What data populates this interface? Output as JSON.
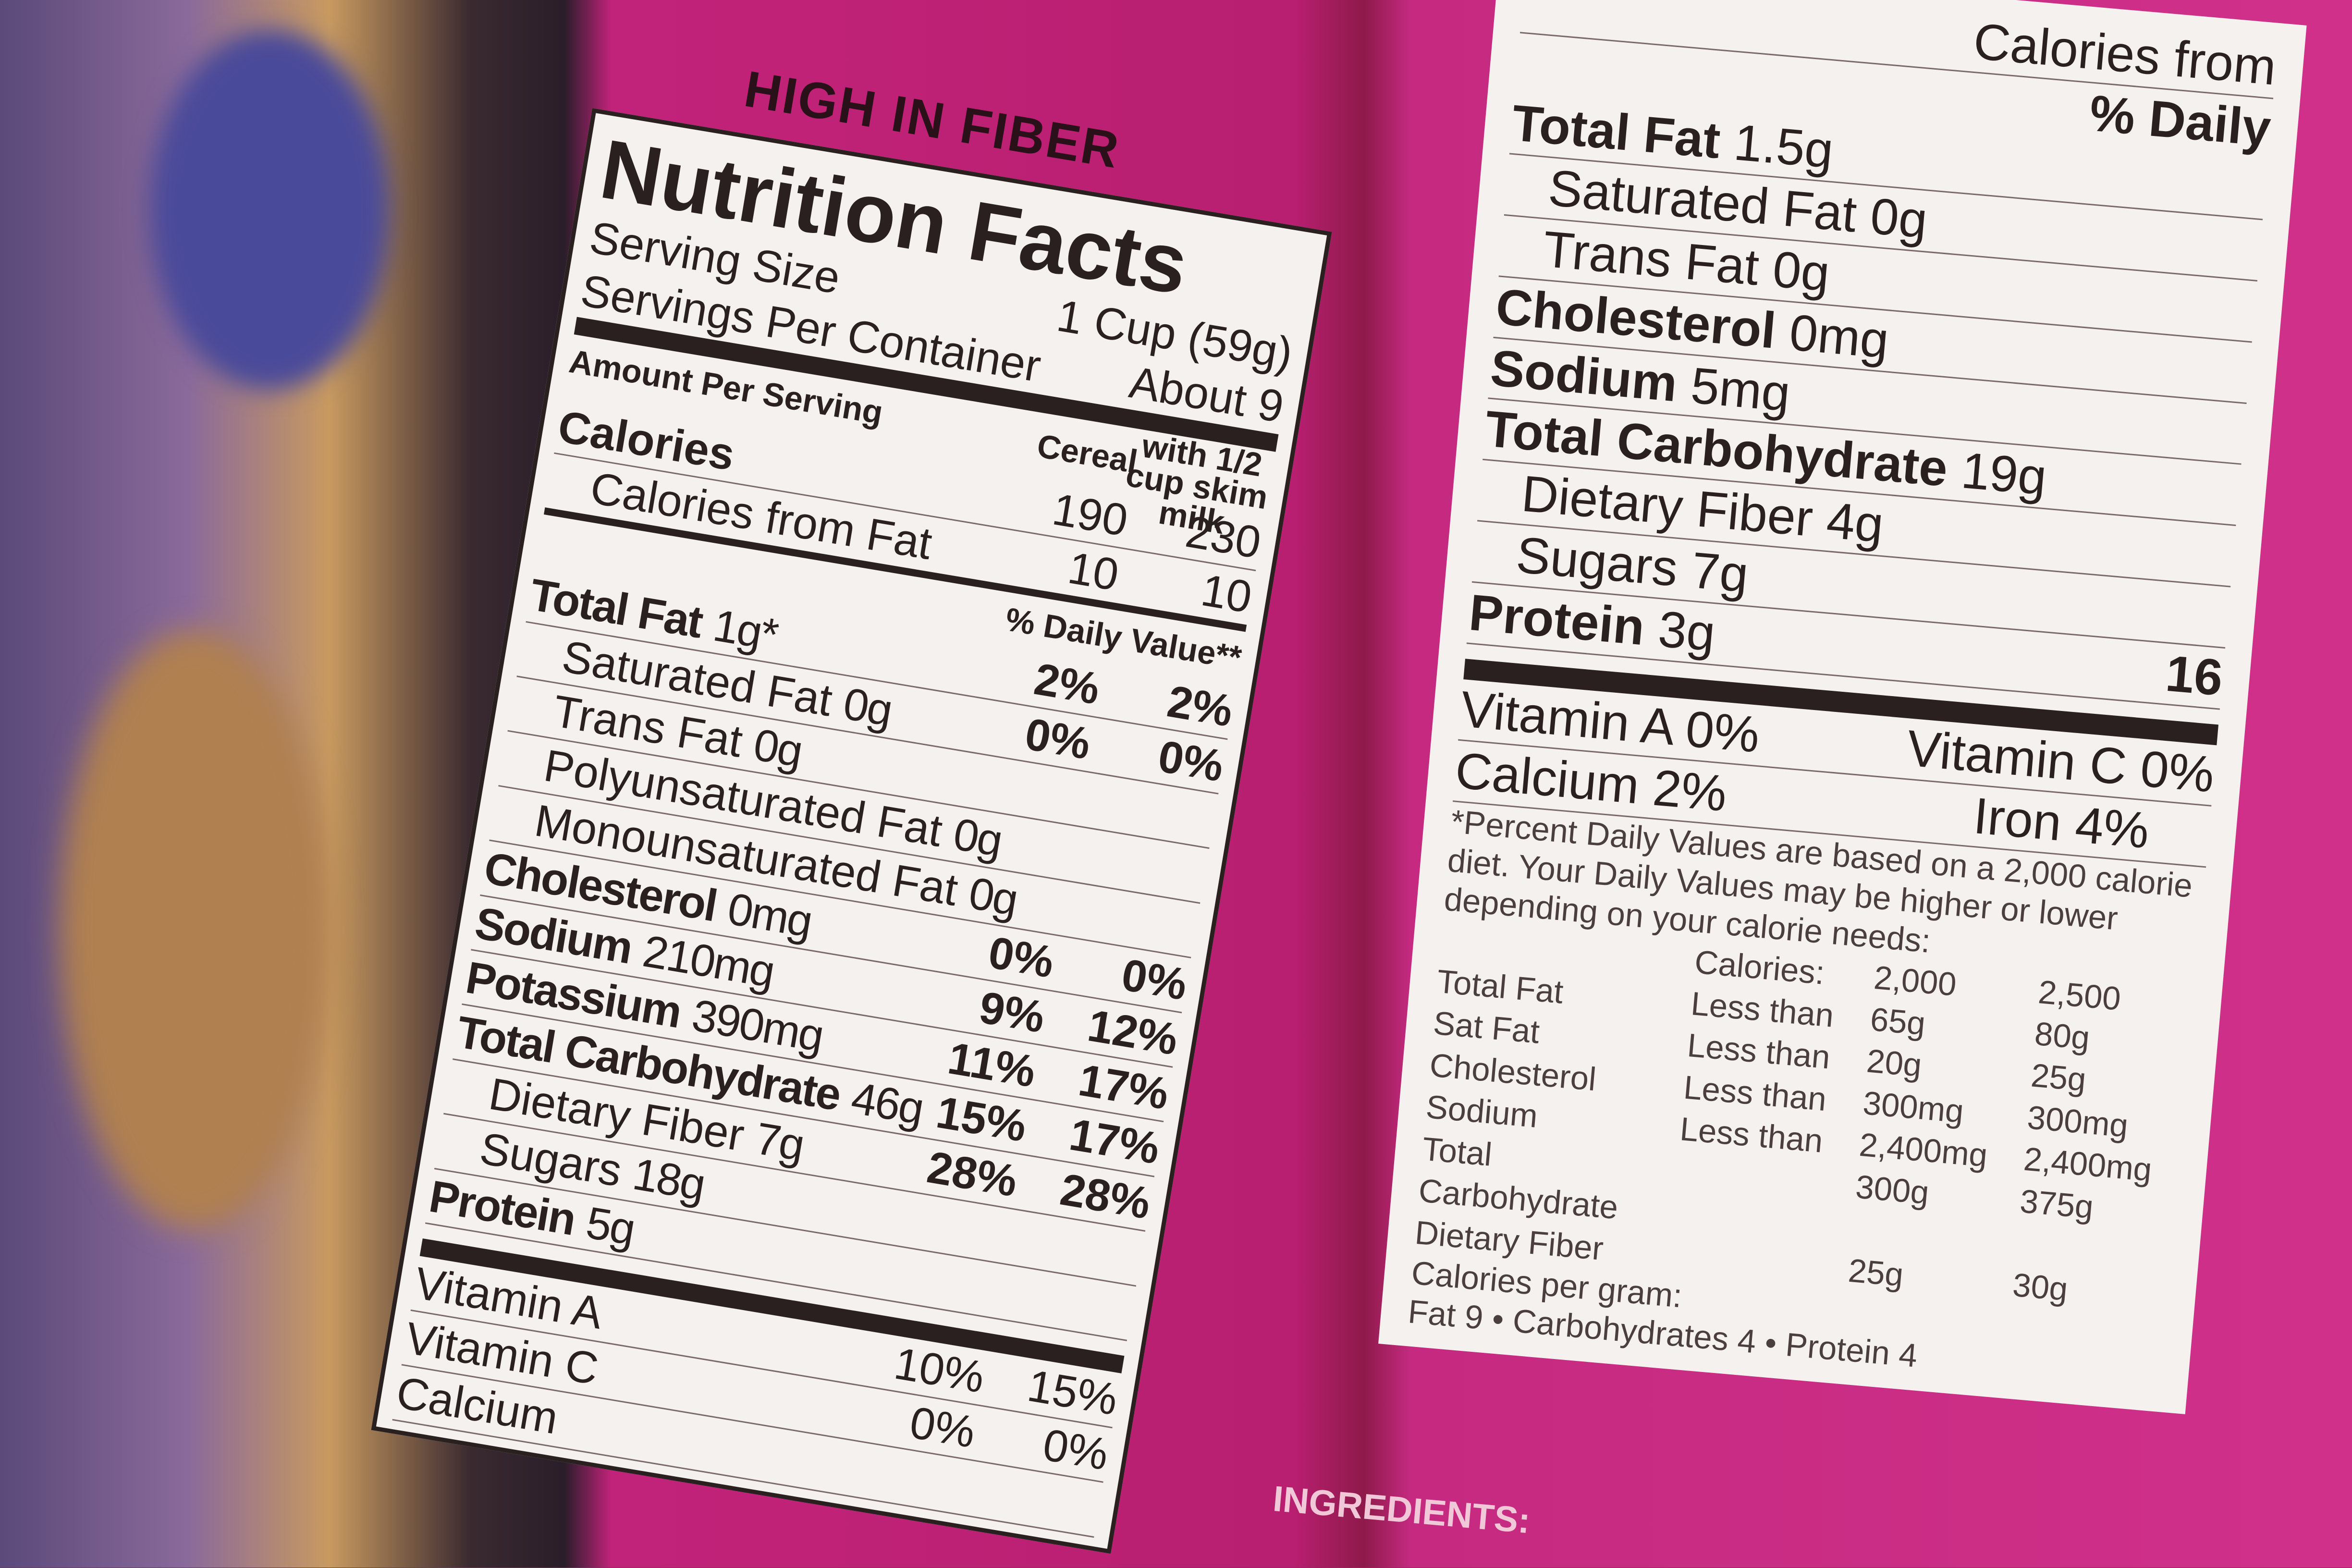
{
  "left_label": {
    "banner": "HIGH IN FIBER",
    "title": "Nutrition Facts",
    "serving_size_label": "Serving Size",
    "serving_size": "1 Cup (59g)",
    "servings_label": "Servings Per Container",
    "servings": "About 9",
    "amount_per_serving": "Amount Per Serving",
    "col_cereal": "Cereal",
    "col_milk": "with 1/2 cup skim milk",
    "calories": {
      "label": "Calories",
      "cereal": "190",
      "milk": "230"
    },
    "calories_fat": {
      "label": "Calories from Fat",
      "cereal": "10",
      "milk": "10"
    },
    "dv_header": "% Daily Value**",
    "rows": [
      {
        "label": "Total Fat",
        "amount": "1g*",
        "cereal": "2%",
        "milk": "2%"
      },
      {
        "label": "Saturated Fat",
        "amount": "0g",
        "cereal": "0%",
        "milk": "0%"
      },
      {
        "label": "Trans Fat",
        "amount": "0g",
        "cereal": "",
        "milk": ""
      },
      {
        "label": "Polyunsaturated Fat",
        "amount": "0g",
        "cereal": "",
        "milk": ""
      },
      {
        "label": "Monounsaturated Fat",
        "amount": "0g",
        "cereal": "",
        "milk": ""
      },
      {
        "label": "Cholesterol",
        "amount": "0mg",
        "cereal": "0%",
        "milk": "0%"
      },
      {
        "label": "Sodium",
        "amount": "210mg",
        "cereal": "9%",
        "milk": "12%"
      },
      {
        "label": "Potassium",
        "amount": "390mg",
        "cereal": "11%",
        "milk": "17%"
      },
      {
        "label": "Total Carbohydrate",
        "amount": "46g",
        "cereal": "15%",
        "milk": "17%"
      },
      {
        "label": "Dietary Fiber",
        "amount": "7g",
        "cereal": "28%",
        "milk": "28%"
      },
      {
        "label": "Sugars",
        "amount": "18g",
        "cereal": "",
        "": "",
        "milk": ""
      },
      {
        "label": "Protein",
        "amount": "5g",
        "cereal": "",
        "milk": ""
      }
    ],
    "vitamins": [
      {
        "label": "Vitamin A",
        "cereal": "10%",
        "milk": "15%"
      },
      {
        "label": "Vitamin C",
        "cereal": "0%",
        "milk": "0%"
      },
      {
        "label": "Calcium",
        "cereal": "",
        "milk": ""
      }
    ]
  },
  "right_label": {
    "calories_from": "Calories from",
    "dv_header": "% Daily",
    "rows": [
      {
        "label": "Total Fat",
        "amount": "1.5g"
      },
      {
        "label": "Saturated Fat",
        "amount": "0g"
      },
      {
        "label": "Trans Fat",
        "amount": "0g"
      },
      {
        "label": "Cholesterol",
        "amount": "0mg"
      },
      {
        "label": "Sodium",
        "amount": "5mg"
      },
      {
        "label": "Total Carbohydrate",
        "amount": "19g"
      },
      {
        "label": "Dietary Fiber",
        "amount": "4g"
      },
      {
        "label": "Sugars",
        "amount": "7g"
      },
      {
        "label": "Protein",
        "amount": "3g",
        "dv": "16"
      }
    ],
    "vitamin_a": "Vitamin A 0%",
    "vitamin_c": "Vitamin C 0%",
    "calcium": "Calcium 2%",
    "iron": "Iron 4%",
    "footnote": "*Percent Daily Values are based on a 2,000 calorie diet. Your Daily Values may be higher or lower depending on your calorie needs:",
    "table": [
      [
        "",
        "Calories:",
        "2,000",
        "2,500"
      ],
      [
        "Total Fat",
        "Less than",
        "65g",
        "80g"
      ],
      [
        "Sat Fat",
        "Less than",
        "20g",
        "25g"
      ],
      [
        "Cholesterol",
        "Less than",
        "300mg",
        "300mg"
      ],
      [
        "Sodium",
        "Less than",
        "2,400mg",
        "2,400mg"
      ],
      [
        "Total Carbohydrate",
        "",
        "300g",
        "375g"
      ],
      [
        "Dietary Fiber",
        "",
        "25g",
        "30g"
      ]
    ],
    "cal_per_gram": "Calories per gram:",
    "cal_line": "Fat 9  •  Carbohydrates 4  •  Protein 4"
  },
  "ingredients": "INGREDIENTS:"
}
